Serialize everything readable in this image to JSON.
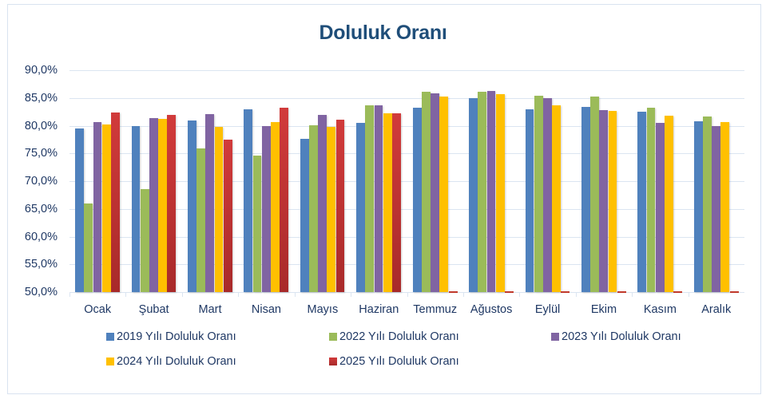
{
  "chart_data": {
    "type": "bar",
    "title": "Doluluk Oranı",
    "xlabel": "",
    "ylabel": "",
    "ylim": [
      50,
      90
    ],
    "yticks": [
      "50,0%",
      "55,0%",
      "60,0%",
      "65,0%",
      "70,0%",
      "75,0%",
      "80,0%",
      "85,0%",
      "90,0%"
    ],
    "grid": true,
    "legend_position": "bottom",
    "categories": [
      "Ocak",
      "Şubat",
      "Mart",
      "Nisan",
      "Mayıs",
      "Haziran",
      "Temmuz",
      "Ağustos",
      "Eylül",
      "Ekim",
      "Kasım",
      "Aralık"
    ],
    "series": [
      {
        "name": "2019 Yılı Doluluk Oranı",
        "color": "#4f81bd",
        "values": [
          79.5,
          79.9,
          81.0,
          83.0,
          77.6,
          80.5,
          83.2,
          84.9,
          83.0,
          83.4,
          82.5,
          80.8
        ]
      },
      {
        "name": "2022 Yılı Doluluk Oranı",
        "color": "#9bbb59",
        "values": [
          66.0,
          68.6,
          75.9,
          74.6,
          80.1,
          83.6,
          86.1,
          86.1,
          85.4,
          85.3,
          83.2,
          81.6
        ]
      },
      {
        "name": "2023 Yılı Doluluk Oranı",
        "color": "#8064a2",
        "values": [
          80.7,
          81.3,
          82.1,
          80.0,
          81.9,
          83.6,
          85.8,
          86.3,
          84.9,
          82.8,
          80.5,
          79.9
        ]
      },
      {
        "name": "2024 Yılı Doluluk Oranı",
        "color": "#ffc000",
        "values": [
          80.2,
          81.2,
          79.8,
          80.7,
          79.8,
          82.2,
          85.2,
          85.7,
          83.7,
          82.7,
          81.8,
          80.7
        ]
      },
      {
        "name": "2025 Yılı Doluluk Oranı",
        "color": "#c0392b",
        "values": [
          82.4,
          81.9,
          77.5,
          83.3,
          81.1,
          82.2,
          0,
          0,
          0,
          0,
          0,
          0
        ]
      }
    ]
  },
  "legend": {
    "items": [
      {
        "label": "2019 Yılı Doluluk Oranı",
        "color": "#4f81bd"
      },
      {
        "label": "2022 Yılı Doluluk Oranı",
        "color": "#9bbb59"
      },
      {
        "label": "2023 Yılı Doluluk Oranı",
        "color": "#8064a2"
      },
      {
        "label": "2024 Yılı Doluluk Oranı",
        "color": "#ffc000"
      },
      {
        "label": "2025 Yılı Doluluk Oranı",
        "color": "#c0392b"
      }
    ]
  }
}
